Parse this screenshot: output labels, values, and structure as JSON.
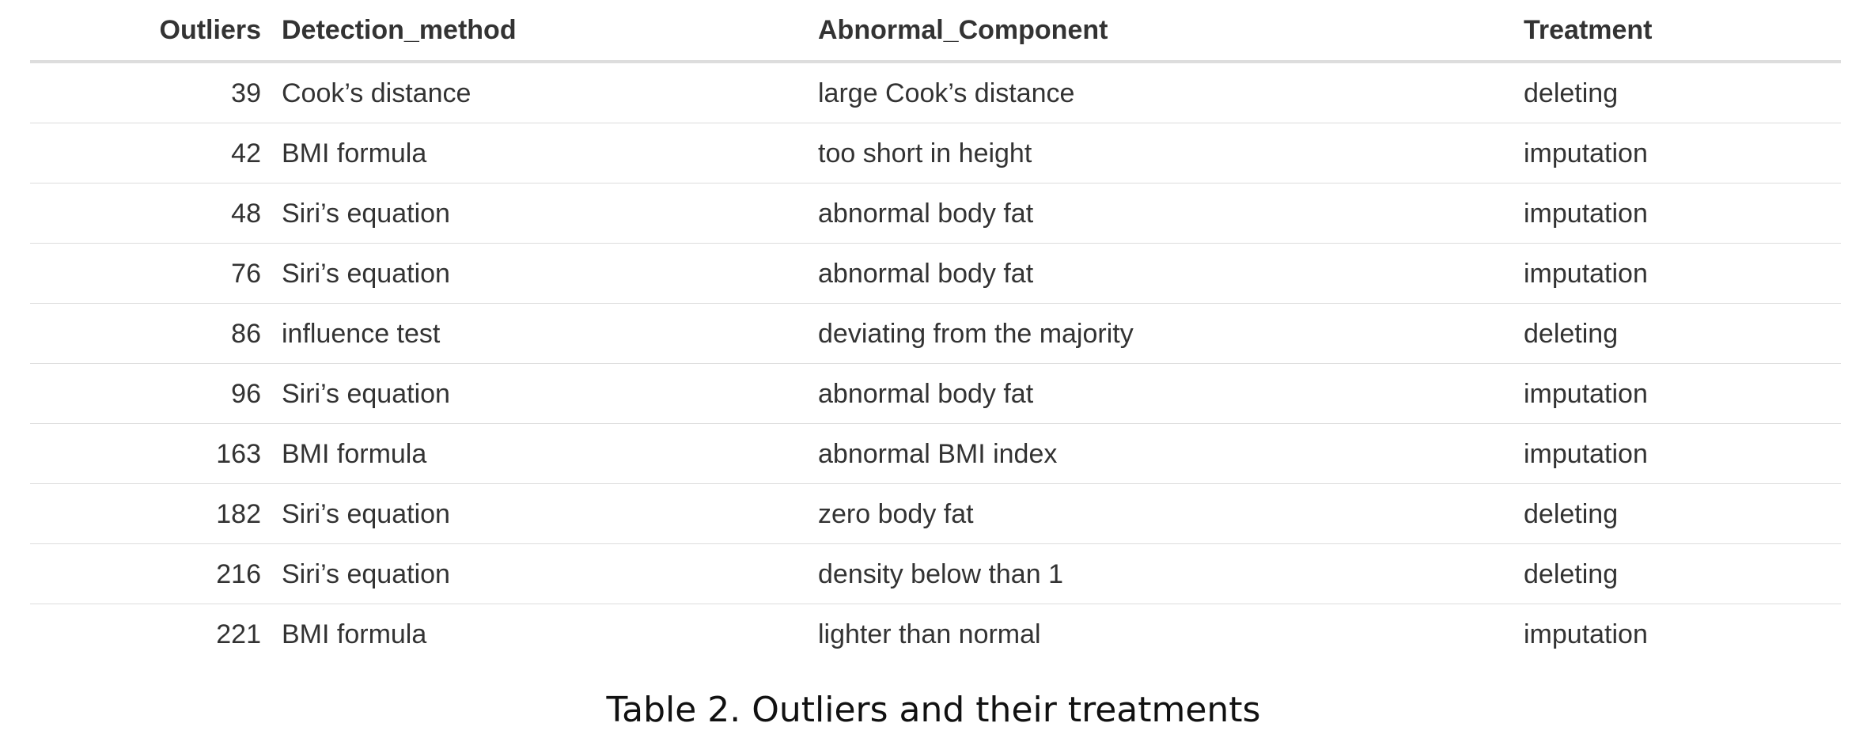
{
  "table": {
    "headers": [
      "Outliers",
      "Detection_method",
      "Abnormal_Component",
      "Treatment"
    ],
    "rows": [
      [
        "39",
        "Cook’s distance",
        "large Cook’s distance",
        "deleting"
      ],
      [
        "42",
        "BMI formula",
        "too short in height",
        "imputation"
      ],
      [
        "48",
        "Siri’s equation",
        "abnormal body fat",
        "imputation"
      ],
      [
        "76",
        "Siri’s equation",
        "abnormal body fat",
        "imputation"
      ],
      [
        "86",
        "influence test",
        "deviating from the majority",
        "deleting"
      ],
      [
        "96",
        "Siri’s equation",
        "abnormal body fat",
        "imputation"
      ],
      [
        "163",
        "BMI formula",
        "abnormal BMI index",
        "imputation"
      ],
      [
        "182",
        "Siri’s equation",
        "zero body fat",
        "deleting"
      ],
      [
        "216",
        "Siri’s equation",
        "density below than 1",
        "deleting"
      ],
      [
        "221",
        "BMI formula",
        "lighter than normal",
        "imputation"
      ]
    ]
  },
  "caption": "Table 2. Outliers and their treatments",
  "colors": {
    "text": "#333333",
    "rule": "#dddddd",
    "caption": "#111111"
  }
}
